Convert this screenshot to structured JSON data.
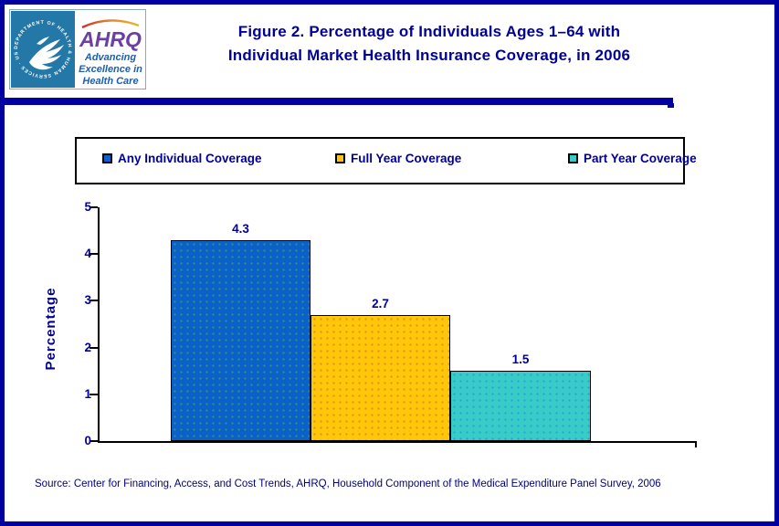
{
  "page": {
    "border_color": "#0000A0",
    "background": "#FFFFFF"
  },
  "header": {
    "title_line1": "Figure 2. Percentage of Individuals Ages 1–64 with",
    "title_line2": "Individual Market Health Insurance Coverage, in 2006",
    "title_color": "#000099",
    "logo": {
      "seal_text": "DEPARTMENT OF HEALTH & HUMAN SERVICES · USA",
      "ahrq_acronym": "AHRQ",
      "tagline_line1": "Advancing",
      "tagline_line2": "Excellence in",
      "tagline_line3": "Health Care"
    }
  },
  "chart_data": {
    "type": "bar",
    "title": "Figure 2. Percentage of Individuals Ages 1–64 with Individual Market Health Insurance Coverage, in 2006",
    "categories": [
      "Any Individual Coverage",
      "Full Year Coverage",
      "Part Year Coverage"
    ],
    "values": [
      4.3,
      2.7,
      1.5
    ],
    "value_labels": [
      "4.3",
      "2.7",
      "1.5"
    ],
    "bar_colors": [
      "#0A62C8",
      "#FFC60A",
      "#38CCC9"
    ],
    "xlabel": "",
    "ylabel": "Percentage",
    "ylim": [
      0,
      5
    ],
    "yticks": [
      0,
      1,
      2,
      3,
      4,
      5
    ],
    "grid": false,
    "legend_position": "top"
  },
  "legend": {
    "items": [
      {
        "label": "Any Individual Coverage",
        "color": "#0A62C8"
      },
      {
        "label": "Full Year Coverage",
        "color": "#FFC60A"
      },
      {
        "label": "Part Year Coverage",
        "color": "#38CCC9"
      }
    ]
  },
  "footer": {
    "source": "Source: Center for Financing, Access, and Cost Trends, AHRQ, Household Component of the Medical Expenditure Panel Survey, 2006"
  }
}
